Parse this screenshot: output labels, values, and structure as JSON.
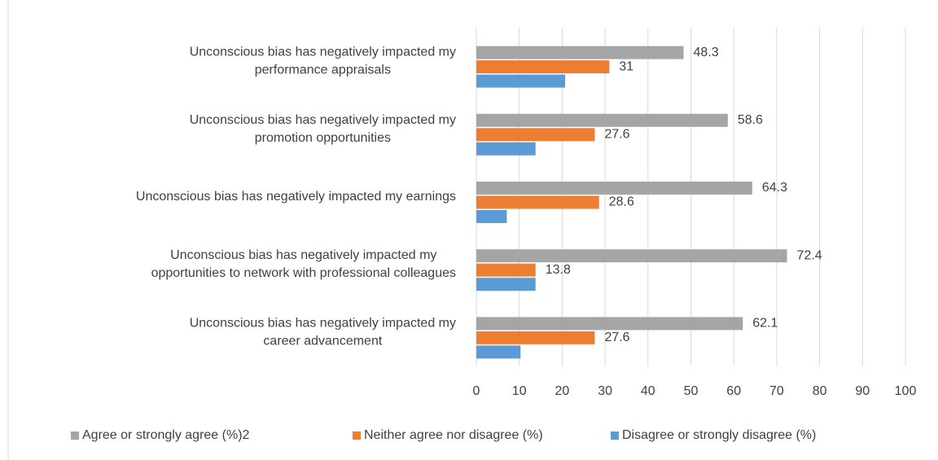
{
  "chart_data": {
    "type": "hbar",
    "categories": [
      "Unconscious bias has negatively impacted my performance appraisals",
      "Unconscious bias has negatively impacted my promotion opportunities",
      "Unconscious bias has negatively impacted my earnings",
      "Unconscious bias has negatively impacted my opportunities to network with professional colleagues",
      "Unconscious bias has negatively impacted my career advancement"
    ],
    "series": [
      {
        "name": "Agree or strongly agree (%)2",
        "color": "#a5a5a5",
        "values": [
          48.3,
          58.6,
          64.3,
          72.4,
          62.1
        ],
        "data_labels": true
      },
      {
        "name": "Neither agree nor disagree (%)",
        "color": "#ed7d31",
        "values": [
          31,
          27.6,
          28.6,
          13.8,
          27.6
        ],
        "data_labels": true
      },
      {
        "name": "Disagree or strongly disagree (%)",
        "color": "#5b9bd5",
        "values": [
          20.7,
          13.8,
          7.1,
          13.8,
          10.3
        ],
        "data_labels": false
      }
    ],
    "xlim": [
      0,
      100
    ],
    "xticks": [
      0,
      10,
      20,
      30,
      40,
      50,
      60,
      70,
      80,
      90,
      100
    ],
    "grid": true,
    "legend": "bottom"
  }
}
